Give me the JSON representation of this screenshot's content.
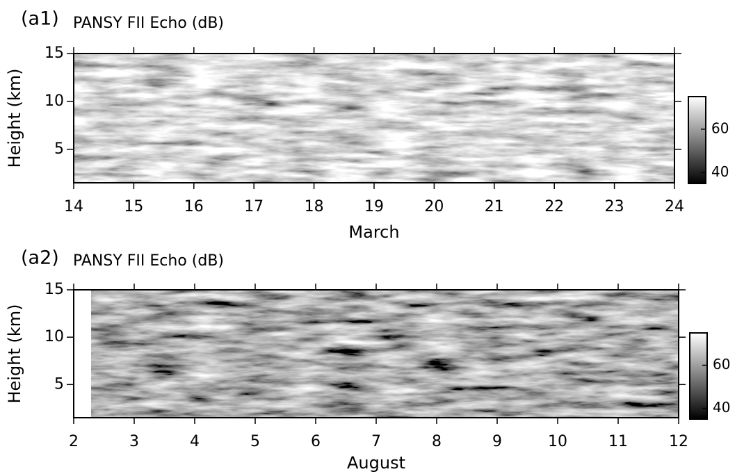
{
  "chart_data": [
    {
      "type": "heatmap",
      "panel_label": "(a1)",
      "title": "PANSY FII Echo (dB)",
      "xlabel": "March",
      "ylabel": "Height (km)",
      "xlim": [
        14,
        24
      ],
      "xticks": [
        14,
        15,
        16,
        17,
        18,
        19,
        20,
        21,
        22,
        23,
        24
      ],
      "ylim": [
        1.5,
        15
      ],
      "yticks": [
        5,
        10,
        15
      ],
      "clim": [
        35,
        75
      ],
      "cticks": [
        40,
        60
      ]
    },
    {
      "type": "heatmap",
      "panel_label": "(a2)",
      "title": "PANSY FII Echo (dB)",
      "xlabel": "August",
      "ylabel": "Height (km)",
      "xlim": [
        2,
        12
      ],
      "xticks": [
        2,
        3,
        4,
        5,
        6,
        7,
        8,
        9,
        10,
        11,
        12
      ],
      "ylim": [
        1.5,
        15
      ],
      "yticks": [
        5,
        10,
        15
      ],
      "clim": [
        35,
        75
      ],
      "cticks": [
        40,
        60
      ]
    }
  ]
}
